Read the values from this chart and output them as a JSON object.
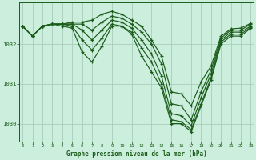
{
  "bg_color": "#cceedd",
  "grid_color": "#aaccbb",
  "line_color": "#1a5c1a",
  "title": "Graphe pression niveau de la mer (hPa)",
  "ylim": [
    1029.55,
    1033.05
  ],
  "yticks": [
    1030,
    1031,
    1032
  ],
  "xticks": [
    0,
    1,
    2,
    3,
    4,
    5,
    6,
    7,
    8,
    9,
    10,
    11,
    12,
    13,
    14,
    15,
    16,
    17,
    18,
    19,
    20,
    21,
    22,
    23
  ],
  "series": [
    [
      1032.45,
      1032.2,
      1032.45,
      1032.5,
      1032.45,
      1032.4,
      1031.8,
      1031.55,
      1031.95,
      1032.45,
      1032.45,
      1032.25,
      1031.7,
      1031.3,
      1030.9,
      1030.0,
      1030.0,
      1029.8,
      1030.45,
      1031.1,
      1032.0,
      1032.2,
      1032.2,
      1032.4
    ],
    [
      1032.45,
      1032.2,
      1032.45,
      1032.5,
      1032.5,
      1032.45,
      1032.1,
      1031.85,
      1032.15,
      1032.5,
      1032.45,
      1032.3,
      1031.9,
      1031.55,
      1031.0,
      1030.1,
      1030.05,
      1029.85,
      1030.5,
      1031.15,
      1032.05,
      1032.25,
      1032.25,
      1032.42
    ],
    [
      1032.45,
      1032.2,
      1032.45,
      1032.5,
      1032.5,
      1032.5,
      1032.35,
      1032.1,
      1032.35,
      1032.6,
      1032.55,
      1032.4,
      1032.1,
      1031.75,
      1031.2,
      1030.25,
      1030.2,
      1029.95,
      1030.65,
      1031.25,
      1032.1,
      1032.3,
      1032.3,
      1032.45
    ],
    [
      1032.45,
      1032.2,
      1032.45,
      1032.5,
      1032.5,
      1032.5,
      1032.5,
      1032.35,
      1032.55,
      1032.7,
      1032.65,
      1032.5,
      1032.3,
      1032.0,
      1031.5,
      1030.5,
      1030.45,
      1030.1,
      1030.8,
      1031.35,
      1032.15,
      1032.35,
      1032.35,
      1032.5
    ],
    [
      1032.45,
      1032.2,
      1032.45,
      1032.5,
      1032.5,
      1032.55,
      1032.55,
      1032.6,
      1032.75,
      1032.82,
      1032.75,
      1032.6,
      1032.45,
      1032.1,
      1031.7,
      1030.8,
      1030.75,
      1030.45,
      1031.05,
      1031.45,
      1032.2,
      1032.38,
      1032.4,
      1032.52
    ]
  ]
}
